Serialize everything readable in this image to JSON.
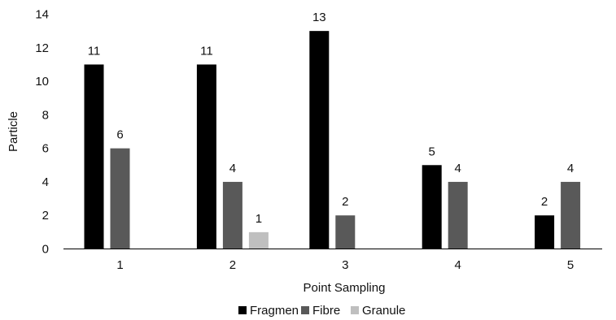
{
  "chart_data": {
    "type": "bar",
    "title": "",
    "xlabel": "Point Sampling",
    "ylabel": "Particle",
    "categories": [
      "1",
      "2",
      "3",
      "4",
      "5"
    ],
    "series": [
      {
        "name": "Fragmen",
        "color": "#000000",
        "values": [
          11,
          11,
          13,
          5,
          2
        ]
      },
      {
        "name": "Fibre",
        "color": "#595959",
        "values": [
          6,
          4,
          2,
          4,
          4
        ]
      },
      {
        "name": "Granule",
        "color": "#bfbfbf",
        "values": [
          null,
          1,
          null,
          null,
          null
        ]
      }
    ],
    "ylim": [
      0,
      14
    ],
    "yticks": [
      0,
      2,
      4,
      6,
      8,
      10,
      12,
      14
    ],
    "grid": false,
    "legend_position": "bottom"
  }
}
